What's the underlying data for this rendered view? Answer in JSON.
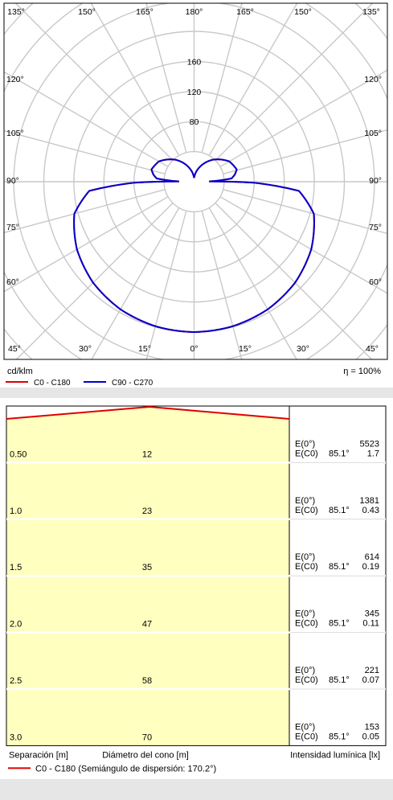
{
  "polar": {
    "unit_label": "cd/klm",
    "efficiency_label": "η = 100%",
    "radial_ticks": [
      {
        "value": 80,
        "label": "80"
      },
      {
        "value": 120,
        "label": "120"
      },
      {
        "value": 160,
        "label": "160"
      }
    ],
    "angle_labels": {
      "top": [
        "135°",
        "150°",
        "165°",
        "180°",
        "165°",
        "150°",
        "135°"
      ],
      "side": [
        "120°",
        "105°",
        "90°",
        "75°",
        "60°"
      ],
      "bottom": [
        "45°",
        "30°",
        "15°",
        "0°",
        "15°",
        "30°",
        "45°"
      ]
    },
    "legend": [
      {
        "label": "C0 - C180",
        "color": "#e00000"
      },
      {
        "label": "C90 - C270",
        "color": "#0000d0"
      }
    ]
  },
  "chart_data": [
    {
      "type": "line",
      "subtype": "polar luminous intensity distribution",
      "unit": "cd/klm",
      "radial_ticks": [
        0,
        40,
        80,
        120,
        160,
        200
      ],
      "angle_unit": "degrees (0° = nadir, 180° = zenith)",
      "series": [
        {
          "name": "C0 - C180",
          "color": "#e00000",
          "points": [
            {
              "angle": 0,
              "value": 200
            },
            {
              "angle": 15,
              "value": 199
            },
            {
              "angle": 30,
              "value": 196
            },
            {
              "angle": 45,
              "value": 190
            },
            {
              "angle": 60,
              "value": 180
            },
            {
              "angle": 75,
              "value": 165
            },
            {
              "angle": 85,
              "value": 140
            },
            {
              "angle": 89,
              "value": 80
            },
            {
              "angle": 91,
              "value": 20
            },
            {
              "angle": 95,
              "value": 50
            },
            {
              "angle": 100,
              "value": 55
            },
            {
              "angle": 106,
              "value": 59
            },
            {
              "angle": 120,
              "value": 54
            },
            {
              "angle": 140,
              "value": 38
            },
            {
              "angle": 160,
              "value": 20
            },
            {
              "angle": 175,
              "value": 8
            },
            {
              "angle": 180,
              "value": 5
            }
          ]
        },
        {
          "name": "C90 - C270",
          "color": "#0000d0",
          "points": [
            {
              "angle": 0,
              "value": 200
            },
            {
              "angle": 15,
              "value": 199
            },
            {
              "angle": 30,
              "value": 196
            },
            {
              "angle": 45,
              "value": 190
            },
            {
              "angle": 60,
              "value": 180
            },
            {
              "angle": 75,
              "value": 165
            },
            {
              "angle": 85,
              "value": 140
            },
            {
              "angle": 89,
              "value": 80
            },
            {
              "angle": 91,
              "value": 20
            },
            {
              "angle": 95,
              "value": 50
            },
            {
              "angle": 100,
              "value": 55
            },
            {
              "angle": 106,
              "value": 59
            },
            {
              "angle": 120,
              "value": 54
            },
            {
              "angle": 140,
              "value": 38
            },
            {
              "angle": 160,
              "value": 20
            },
            {
              "angle": 175,
              "value": 8
            },
            {
              "angle": 180,
              "value": 5
            }
          ]
        }
      ]
    },
    {
      "type": "table",
      "subtype": "cone diagram",
      "half_angle_deg": 170.2,
      "columns": [
        "Separación [m]",
        "Diámetro del cono [m]",
        "Intensidad lumínica [lx]"
      ],
      "rows": [
        {
          "distance": "0.50",
          "diameter": "12",
          "e0_label": "E(0°)",
          "e0": "5523",
          "ec0_label": "E(C0)",
          "angle": "85.1°",
          "ec0": "1.7"
        },
        {
          "distance": "1.0",
          "diameter": "23",
          "e0_label": "E(0°)",
          "e0": "1381",
          "ec0_label": "E(C0)",
          "angle": "85.1°",
          "ec0": "0.43"
        },
        {
          "distance": "1.5",
          "diameter": "35",
          "e0_label": "E(0°)",
          "e0": "614",
          "ec0_label": "E(C0)",
          "angle": "85.1°",
          "ec0": "0.19"
        },
        {
          "distance": "2.0",
          "diameter": "47",
          "e0_label": "E(0°)",
          "e0": "345",
          "ec0_label": "E(C0)",
          "angle": "85.1°",
          "ec0": "0.11"
        },
        {
          "distance": "2.5",
          "diameter": "58",
          "e0_label": "E(0°)",
          "e0": "221",
          "ec0_label": "E(C0)",
          "angle": "85.1°",
          "ec0": "0.07"
        },
        {
          "distance": "3.0",
          "diameter": "70",
          "e0_label": "E(0°)",
          "e0": "153",
          "ec0_label": "E(C0)",
          "angle": "85.1°",
          "ec0": "0.05"
        }
      ]
    }
  ],
  "cone": {
    "col_separation": "Separación [m]",
    "col_diameter": "Diámetro del cono [m]",
    "col_intensity": "Intensidad lumínica [lx]",
    "legend_label": "C0 - C180 (Semiángulo de dispersión: 170.2°)",
    "legend_color": "#e00000",
    "fill_color": "#ffffc0"
  }
}
